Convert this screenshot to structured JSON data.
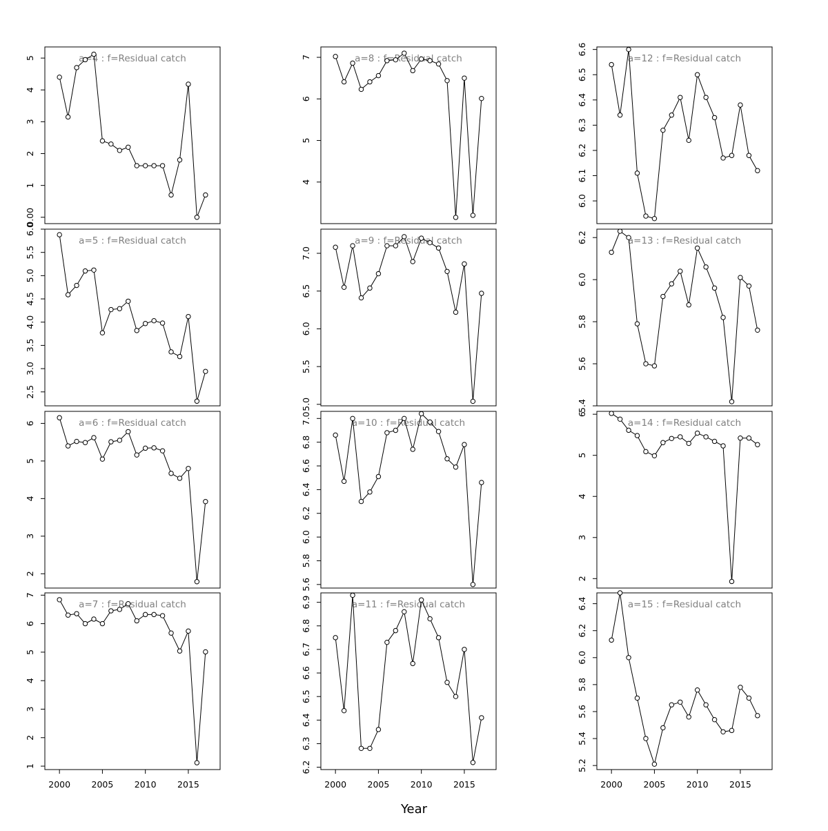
{
  "figure": {
    "xlabel": "Year"
  },
  "chart_data": [
    {
      "type": "line",
      "title": "a=4  :  f=Residual catch",
      "x": [
        2000,
        2001,
        2002,
        2003,
        2004,
        2005,
        2006,
        2007,
        2008,
        2009,
        2010,
        2011,
        2012,
        2013,
        2014,
        2015,
        2016,
        2017
      ],
      "y": [
        4.4,
        3.15,
        4.7,
        4.95,
        5.12,
        2.4,
        2.3,
        2.1,
        2.2,
        1.62,
        1.62,
        1.62,
        1.62,
        0.7,
        1.8,
        4.18,
        0.0,
        0.7
      ],
      "xlim": [
        1998.3,
        2018.7
      ],
      "ylim": [
        -0.2,
        5.35
      ],
      "yticks": [
        0,
        1,
        2,
        3,
        4,
        5
      ],
      "ytick_labels": [
        "0.00",
        "1",
        "2",
        "3",
        "4",
        "5"
      ],
      "xticks": [
        2000,
        2005,
        2010,
        2015
      ]
    },
    {
      "type": "line",
      "title": "a=8  :  f=Residual catch",
      "x": [
        2000,
        2001,
        2002,
        2003,
        2004,
        2005,
        2006,
        2007,
        2008,
        2009,
        2010,
        2011,
        2012,
        2013,
        2014,
        2015,
        2016,
        2017
      ],
      "y": [
        7.02,
        6.41,
        6.86,
        6.23,
        6.41,
        6.56,
        6.92,
        6.94,
        7.1,
        6.68,
        6.96,
        6.92,
        6.84,
        6.44,
        3.15,
        6.5,
        3.2,
        6.01
      ],
      "xlim": [
        1998.3,
        2018.7
      ],
      "ylim": [
        3.0,
        7.25
      ],
      "yticks": [
        4,
        5,
        6,
        7
      ],
      "xticks": [
        2000,
        2005,
        2010,
        2015
      ]
    },
    {
      "type": "line",
      "title": "a=12  :  f=Residual catch",
      "x": [
        2000,
        2001,
        2002,
        2003,
        2004,
        2005,
        2006,
        2007,
        2008,
        2009,
        2010,
        2011,
        2012,
        2013,
        2014,
        2015,
        2016,
        2017
      ],
      "y": [
        6.54,
        6.34,
        6.6,
        6.11,
        5.94,
        5.93,
        6.28,
        6.34,
        6.41,
        6.24,
        6.5,
        6.41,
        6.33,
        6.17,
        6.18,
        6.38,
        6.18,
        6.12
      ],
      "xlim": [
        1998.3,
        2018.7
      ],
      "ylim": [
        5.91,
        6.61
      ],
      "yticks": [
        6.0,
        6.1,
        6.2,
        6.3,
        6.4,
        6.5,
        6.6
      ],
      "ytick_labels": [
        "6.0",
        "6.1",
        "6.2",
        "6.3",
        "6.4",
        "6.5",
        "6.6"
      ],
      "xticks": [
        2000,
        2005,
        2010,
        2015
      ]
    },
    {
      "type": "line",
      "title": "a=5  :  f=Residual catch",
      "x": [
        2000,
        2001,
        2002,
        2003,
        2004,
        2005,
        2006,
        2007,
        2008,
        2009,
        2010,
        2011,
        2012,
        2013,
        2014,
        2015,
        2016,
        2017
      ],
      "y": [
        5.88,
        4.59,
        4.79,
        5.1,
        5.12,
        3.77,
        4.27,
        4.29,
        4.45,
        3.82,
        3.97,
        4.03,
        3.98,
        3.36,
        3.26,
        4.12,
        2.3,
        2.94
      ],
      "xlim": [
        1998.3,
        2018.7
      ],
      "ylim": [
        2.2,
        6.0
      ],
      "yticks": [
        2.5,
        3.0,
        3.5,
        4.0,
        4.5,
        5.0,
        5.5,
        6.0
      ],
      "ytick_labels": [
        "2.5",
        "3.0",
        "3.5",
        "4.0",
        "4.5",
        "5.0",
        "5.5",
        "6.0"
      ],
      "xticks": [
        2000,
        2005,
        2010,
        2015
      ]
    },
    {
      "type": "line",
      "title": "a=9  :  f=Residual catch",
      "x": [
        2000,
        2001,
        2002,
        2003,
        2004,
        2005,
        2006,
        2007,
        2008,
        2009,
        2010,
        2011,
        2012,
        2013,
        2014,
        2015,
        2016,
        2017
      ],
      "y": [
        7.08,
        6.55,
        7.1,
        6.41,
        6.54,
        6.73,
        7.1,
        7.1,
        7.22,
        6.89,
        7.2,
        7.14,
        7.07,
        6.76,
        6.22,
        6.86,
        5.04,
        6.47
      ],
      "xlim": [
        1998.3,
        2018.7
      ],
      "ylim": [
        4.98,
        7.32
      ],
      "yticks": [
        5.0,
        5.5,
        6.0,
        6.5,
        7.0
      ],
      "ytick_labels": [
        "5.0",
        "5.5",
        "6.0",
        "6.5",
        "7.0"
      ],
      "xticks": [
        2000,
        2005,
        2010,
        2015
      ]
    },
    {
      "type": "line",
      "title": "a=13  :  f=Residual catch",
      "x": [
        2000,
        2001,
        2002,
        2003,
        2004,
        2005,
        2006,
        2007,
        2008,
        2009,
        2010,
        2011,
        2012,
        2013,
        2014,
        2015,
        2016,
        2017
      ],
      "y": [
        6.13,
        6.23,
        6.2,
        5.79,
        5.6,
        5.59,
        5.92,
        5.98,
        6.04,
        5.88,
        6.15,
        6.06,
        5.96,
        5.82,
        5.42,
        6.01,
        5.97,
        5.76
      ],
      "xlim": [
        1998.3,
        2018.7
      ],
      "ylim": [
        5.4,
        6.24
      ],
      "yticks": [
        5.4,
        5.6,
        5.8,
        6.0,
        6.2
      ],
      "ytick_labels": [
        "5.4",
        "5.6",
        "5.8",
        "6.0",
        "6.2"
      ],
      "xticks": [
        2000,
        2005,
        2010,
        2015
      ]
    },
    {
      "type": "line",
      "title": "a=6  :  f=Residual catch",
      "x": [
        2000,
        2001,
        2002,
        2003,
        2004,
        2005,
        2006,
        2007,
        2008,
        2009,
        2010,
        2011,
        2012,
        2013,
        2014,
        2015,
        2016,
        2017
      ],
      "y": [
        6.15,
        5.4,
        5.52,
        5.49,
        5.62,
        5.05,
        5.51,
        5.55,
        5.78,
        5.16,
        5.34,
        5.35,
        5.27,
        4.67,
        4.54,
        4.8,
        1.79,
        3.92
      ],
      "xlim": [
        1998.3,
        2018.7
      ],
      "ylim": [
        1.62,
        6.32
      ],
      "yticks": [
        2,
        3,
        4,
        5,
        6
      ],
      "xticks": [
        2000,
        2005,
        2010,
        2015
      ]
    },
    {
      "type": "line",
      "title": "a=10  :  f=Residual catch",
      "x": [
        2000,
        2001,
        2002,
        2003,
        2004,
        2005,
        2006,
        2007,
        2008,
        2009,
        2010,
        2011,
        2012,
        2013,
        2014,
        2015,
        2016,
        2017
      ],
      "y": [
        6.86,
        6.47,
        7.0,
        6.3,
        6.38,
        6.51,
        6.88,
        6.9,
        7.0,
        6.74,
        7.04,
        6.97,
        6.89,
        6.66,
        6.59,
        6.78,
        5.6,
        6.46
      ],
      "xlim": [
        1998.3,
        2018.7
      ],
      "ylim": [
        5.57,
        7.06
      ],
      "yticks": [
        5.6,
        5.8,
        6.0,
        6.2,
        6.4,
        6.6,
        6.8,
        7.0
      ],
      "ytick_labels": [
        "5.6",
        "5.8",
        "6.0",
        "6.2",
        "6.4",
        "6.6",
        "6.8",
        "7.0"
      ],
      "xticks": [
        2000,
        2005,
        2010,
        2015
      ]
    },
    {
      "type": "line",
      "title": "a=14  :  f=Residual catch",
      "x": [
        2000,
        2001,
        2002,
        2003,
        2004,
        2005,
        2006,
        2007,
        2008,
        2009,
        2010,
        2011,
        2012,
        2013,
        2014,
        2015,
        2016,
        2017
      ],
      "y": [
        6.02,
        5.88,
        5.61,
        5.48,
        5.09,
        4.99,
        5.31,
        5.41,
        5.45,
        5.29,
        5.54,
        5.45,
        5.34,
        5.23,
        1.93,
        5.42,
        5.42,
        5.26
      ],
      "xlim": [
        1998.3,
        2018.7
      ],
      "ylim": [
        1.77,
        6.07
      ],
      "yticks": [
        2,
        3,
        4,
        5,
        6
      ],
      "xticks": [
        2000,
        2005,
        2010,
        2015
      ]
    },
    {
      "type": "line",
      "title": "a=7  :  f=Residual catch",
      "x": [
        2000,
        2001,
        2002,
        2003,
        2004,
        2005,
        2006,
        2007,
        2008,
        2009,
        2010,
        2011,
        2012,
        2013,
        2014,
        2015,
        2016,
        2017
      ],
      "y": [
        6.84,
        6.3,
        6.35,
        6.0,
        6.16,
        6.0,
        6.45,
        6.5,
        6.7,
        6.1,
        6.32,
        6.32,
        6.28,
        5.67,
        5.04,
        5.74,
        1.12,
        5.01
      ],
      "xlim": [
        1998.3,
        2018.7
      ],
      "ylim": [
        0.88,
        7.08
      ],
      "yticks": [
        1,
        2,
        3,
        4,
        5,
        6,
        7
      ],
      "xticks": [
        2000,
        2005,
        2010,
        2015
      ],
      "xtick_labels_visible": true
    },
    {
      "type": "line",
      "title": "a=11  :  f=Residual catch",
      "x": [
        2000,
        2001,
        2002,
        2003,
        2004,
        2005,
        2006,
        2007,
        2008,
        2009,
        2010,
        2011,
        2012,
        2013,
        2014,
        2015,
        2016,
        2017
      ],
      "y": [
        6.75,
        6.44,
        6.93,
        6.28,
        6.28,
        6.36,
        6.73,
        6.78,
        6.86,
        6.64,
        6.91,
        6.83,
        6.75,
        6.56,
        6.5,
        6.7,
        6.22,
        6.41
      ],
      "xlim": [
        1998.3,
        2018.7
      ],
      "ylim": [
        6.19,
        6.94
      ],
      "yticks": [
        6.2,
        6.3,
        6.4,
        6.5,
        6.6,
        6.7,
        6.8,
        6.9
      ],
      "ytick_labels": [
        "6.2",
        "6.3",
        "6.4",
        "6.5",
        "6.6",
        "6.7",
        "6.8",
        "6.9"
      ],
      "xticks": [
        2000,
        2005,
        2010,
        2015
      ],
      "xtick_labels_visible": true
    },
    {
      "type": "line",
      "title": "a=15  :  f=Residual catch",
      "x": [
        2000,
        2001,
        2002,
        2003,
        2004,
        2005,
        2006,
        2007,
        2008,
        2009,
        2010,
        2011,
        2012,
        2013,
        2014,
        2015,
        2016,
        2017
      ],
      "y": [
        6.13,
        6.48,
        6.0,
        5.7,
        5.4,
        5.21,
        5.48,
        5.65,
        5.67,
        5.56,
        5.76,
        5.65,
        5.54,
        5.45,
        5.46,
        5.78,
        5.7,
        5.57
      ],
      "xlim": [
        1998.3,
        2018.7
      ],
      "ylim": [
        5.17,
        6.48
      ],
      "yticks": [
        5.2,
        5.4,
        5.6,
        5.8,
        6.0,
        6.2,
        6.4
      ],
      "ytick_labels": [
        "5.2",
        "5.4",
        "5.6",
        "5.8",
        "6.0",
        "6.2",
        "6.4"
      ],
      "xticks": [
        2000,
        2005,
        2010,
        2015
      ],
      "xtick_labels_visible": true
    }
  ]
}
